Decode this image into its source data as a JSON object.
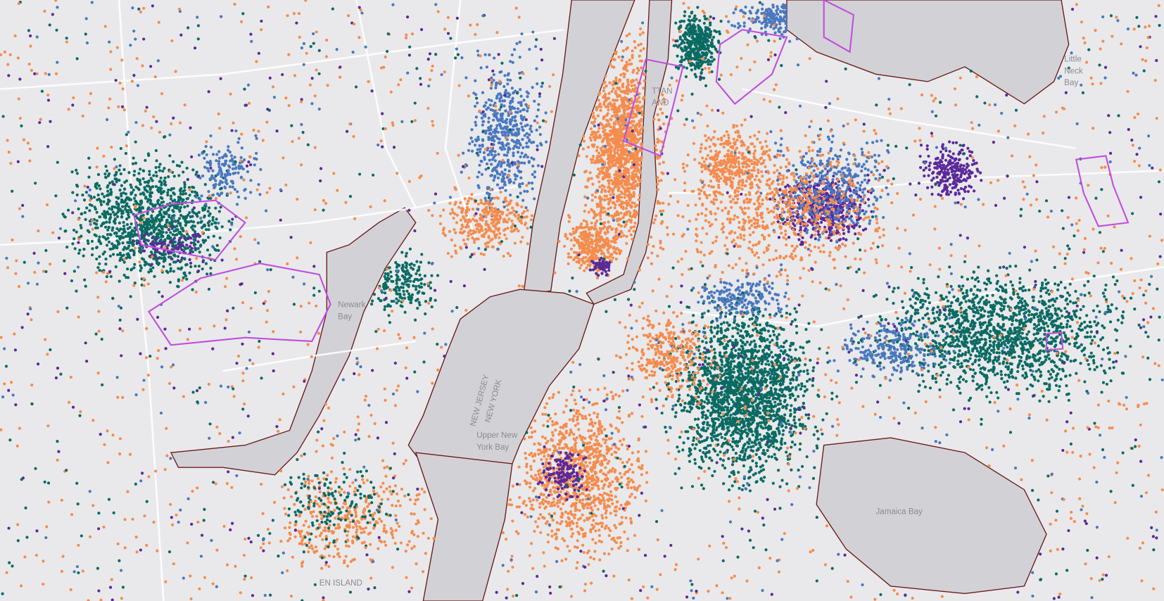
{
  "labels": [
    {
      "lines": [
        "Newark",
        "Bay"
      ]
    },
    {
      "lines": [
        "NEW JERSEY"
      ]
    },
    {
      "lines": [
        "NEW YORK"
      ]
    },
    {
      "lines": [
        "Upper New",
        "York Bay"
      ]
    },
    {
      "lines": [
        "Jamaica Bay"
      ]
    },
    {
      "lines": [
        "Little",
        "Neck",
        "Bay"
      ]
    },
    {
      "lines": [
        "TTAN",
        "AND"
      ]
    },
    {
      "lines": [
        "EN ISLAND"
      ]
    }
  ]
}
